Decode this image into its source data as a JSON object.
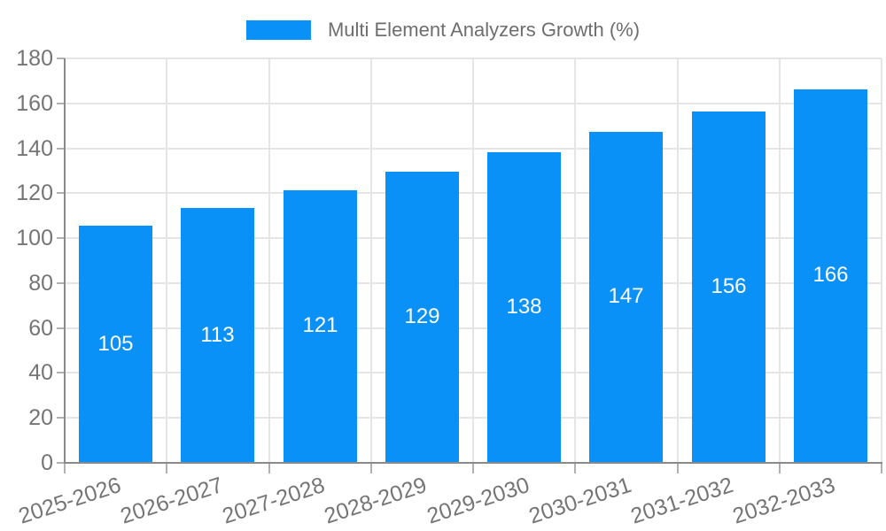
{
  "legend": {
    "label": "Multi Element Analyzers Growth (%)"
  },
  "chart_data": {
    "type": "bar",
    "title": "",
    "series_name": "Multi Element Analyzers Growth (%)",
    "categories": [
      "2025-2026",
      "2026-2027",
      "2027-2028",
      "2028-2029",
      "2029-2030",
      "2030-2031",
      "2031-2032",
      "2032-2033"
    ],
    "values": [
      105,
      113,
      121,
      129,
      138,
      147,
      156,
      166
    ],
    "xlabel": "",
    "ylabel": "",
    "ylim": [
      0,
      180
    ],
    "ytick_step": 20,
    "yticks": [
      0,
      20,
      40,
      60,
      80,
      100,
      120,
      140,
      160,
      180
    ],
    "grid": "on",
    "legend_position": "top-center",
    "bar_label_position": "inside-center",
    "x_tick_rotation_deg": -18
  },
  "colors": {
    "bar": "#0a91f7",
    "bar_label_text": "#ffffff",
    "axis_text": "#757575",
    "legend_text": "#6e6e6e",
    "axis_line": "#8a8a8a",
    "tick": "#b0b0b0",
    "gridline": "#e5e5e5",
    "background": "#ffffff"
  }
}
